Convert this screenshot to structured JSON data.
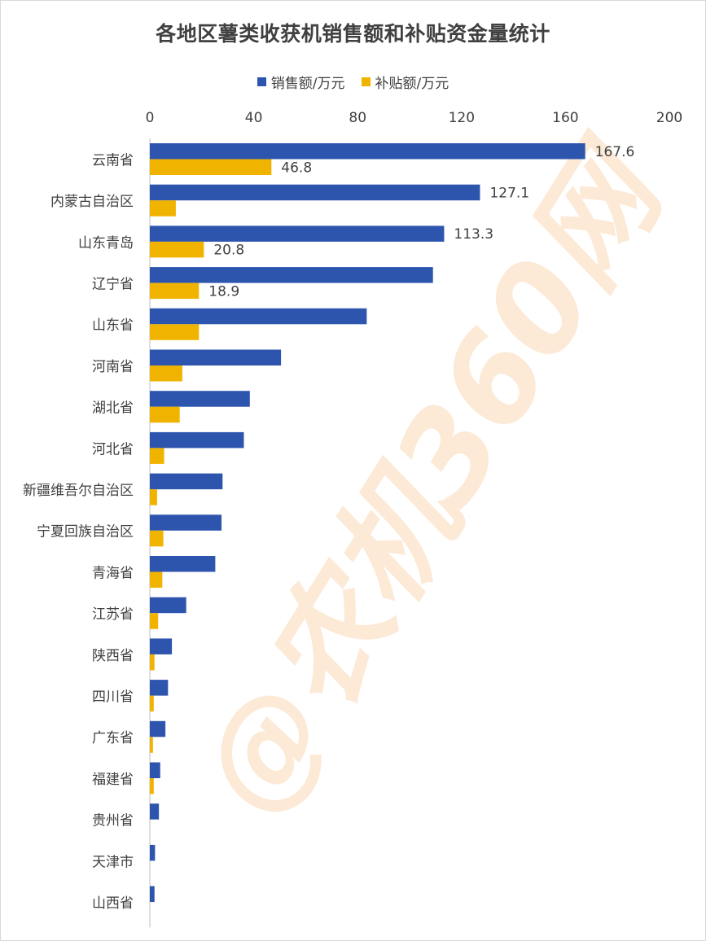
{
  "title": "各地区薯类收获机销售额和补贴资金量统计",
  "watermark": "@农机360网",
  "colors": {
    "sales": "#2E55AE",
    "subsidy": "#F0B400",
    "axis": "#bfbfbf",
    "text": "#404040"
  },
  "chart_data": {
    "type": "bar",
    "orientation": "horizontal",
    "title": "各地区薯类收获机销售额和补贴资金量统计",
    "xlim": [
      0,
      200
    ],
    "x_ticks": [
      0,
      40,
      80,
      120,
      160,
      200
    ],
    "x_axis_position": "top",
    "grid": false,
    "legend_position": "top",
    "categories": [
      "云南省",
      "内蒙古自治区",
      "山东青岛",
      "辽宁省",
      "山东省",
      "河南省",
      "湖北省",
      "河北省",
      "新疆维吾尔自治区",
      "宁夏回族自治区",
      "青海省",
      "江苏省",
      "陕西省",
      "四川省",
      "广东省",
      "福建省",
      "贵州省",
      "天津市",
      "山西省"
    ],
    "series": [
      {
        "name": "销售额/万元",
        "color": "#2E55AE",
        "values": [
          167.6,
          127.1,
          113.3,
          109.0,
          83.5,
          50.5,
          38.5,
          36.2,
          28.0,
          27.6,
          25.2,
          14.0,
          8.5,
          7.0,
          6.0,
          4.0,
          3.5,
          2.0,
          1.8
        ],
        "labels": [
          "167.6",
          "127.1",
          "113.3",
          "",
          "",
          "",
          "",
          "",
          "",
          "",
          "",
          "",
          "",
          "",
          "",
          "",
          "",
          "",
          ""
        ]
      },
      {
        "name": "补贴额/万元",
        "color": "#F0B400",
        "values": [
          46.8,
          10.0,
          20.8,
          18.9,
          18.9,
          12.5,
          11.5,
          5.5,
          2.8,
          5.2,
          4.8,
          3.2,
          1.8,
          1.5,
          1.2,
          1.5,
          0,
          0,
          0
        ],
        "labels": [
          "46.8",
          "",
          "20.8",
          "18.9",
          "",
          "",
          "",
          "",
          "",
          "",
          "",
          "",
          "",
          "",
          "",
          "",
          "",
          "",
          ""
        ]
      }
    ]
  }
}
